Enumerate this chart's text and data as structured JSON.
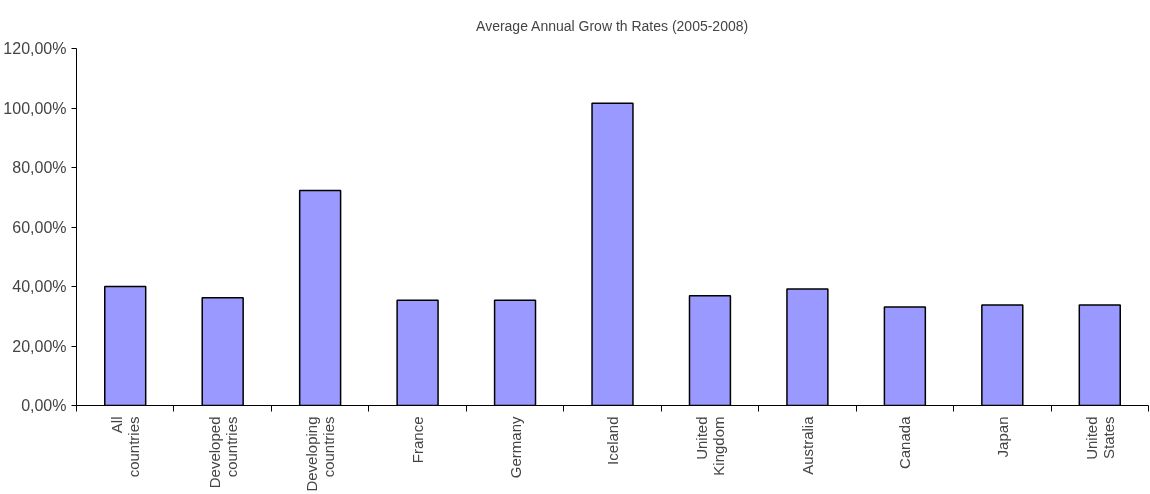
{
  "chart_data": {
    "type": "bar",
    "title": "Average Annual Grow th Rates (2005-2008)",
    "categories": [
      "All countries",
      "Developed countries",
      "Developing countries",
      "France",
      "Germany",
      "Iceland",
      "United Kingdom",
      "Australia",
      "Canada",
      "Japan",
      "United States"
    ],
    "values": [
      40.0,
      36.2,
      72.3,
      35.4,
      35.4,
      101.6,
      36.9,
      39.2,
      33.1,
      33.8,
      33.8
    ],
    "color": "#9999ff",
    "ylim": [
      0,
      120
    ],
    "yticks": [
      {
        "value": 0,
        "label": "0,00%"
      },
      {
        "value": 20,
        "label": "20,00%"
      },
      {
        "value": 40,
        "label": "40,00%"
      },
      {
        "value": 60,
        "label": "60,00%"
      },
      {
        "value": 80,
        "label": "80,00%"
      },
      {
        "value": 100,
        "label": "100,00%"
      },
      {
        "value": 120,
        "label": "120,00%"
      }
    ],
    "grid": false
  }
}
